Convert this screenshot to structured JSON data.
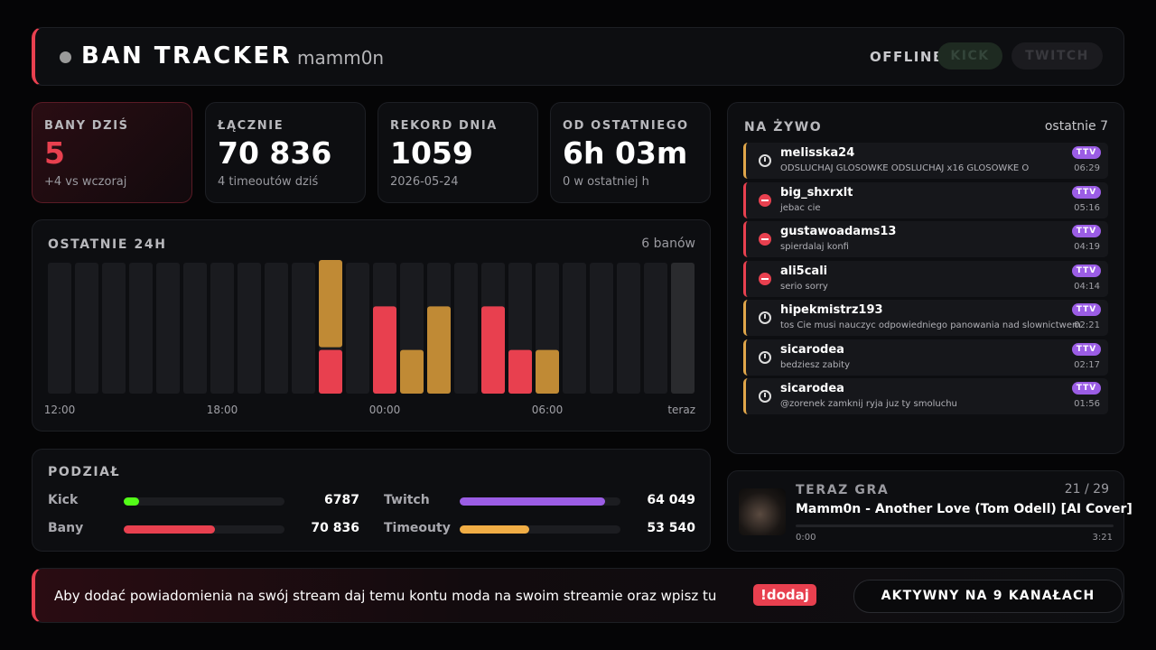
{
  "header": {
    "title": "BAN TRACKER",
    "channel": "mamm0n",
    "status": "OFFLINE",
    "platforms": [
      "KICK",
      "TWITCH"
    ]
  },
  "stats": [
    {
      "label": "BANY DZIŚ",
      "value": "5",
      "sub": "+4 vs wczoraj"
    },
    {
      "label": "ŁĄCZNIE",
      "value": "70 836",
      "sub": "4 timeoutów dziś"
    },
    {
      "label": "REKORD DNIA",
      "value": "1059",
      "sub": "2026-05-24"
    },
    {
      "label": "OD OSTATNIEGO",
      "value": "6h 03m",
      "sub": "0 w ostatniej h"
    }
  ],
  "history": {
    "type": "bar",
    "title": "OSTATNIE 24H",
    "summary": "6 banów",
    "stacked": true,
    "categories": [
      "12:00",
      null,
      null,
      null,
      null,
      null,
      "18:00",
      null,
      null,
      null,
      null,
      null,
      "00:00",
      null,
      null,
      null,
      null,
      null,
      "06:00",
      null,
      null,
      null,
      null,
      "teraz"
    ],
    "series": [
      {
        "color": "#e8404f",
        "values": [
          0,
          0,
          0,
          0,
          0,
          0,
          0,
          0,
          0,
          0,
          1,
          0,
          2,
          0,
          0,
          0,
          2,
          1,
          0,
          0,
          0,
          0,
          0,
          0
        ]
      },
      {
        "color": "#c08a35",
        "values": [
          0,
          0,
          0,
          0,
          0,
          0,
          0,
          0,
          0,
          0,
          2,
          0,
          0,
          1,
          2,
          0,
          0,
          0,
          1,
          0,
          0,
          0,
          0,
          0
        ]
      }
    ],
    "ylim": [
      0,
      3
    ]
  },
  "breakdown": {
    "title": "PODZIAŁ",
    "groups": [
      [
        {
          "label": "Kick",
          "value": 6787,
          "value_label": "6787",
          "color": "#53fc18"
        },
        {
          "label": "Twitch",
          "value": 64049,
          "value_label": "64 049",
          "color": "#9b5de5"
        }
      ],
      [
        {
          "label": "Bany",
          "value": 70836,
          "value_label": "70 836",
          "color": "#e8404f"
        },
        {
          "label": "Timeouty",
          "value": 53540,
          "value_label": "53 540",
          "color": "#f0ad45"
        }
      ]
    ]
  },
  "live": {
    "title": "NA ŻYWO",
    "scope": "ostatnie 7",
    "items": [
      {
        "ban": false,
        "user": "melisska24",
        "message": "ODSLUCHAJ GLOSOWKE ODSLUCHAJ x16 GLOSOWKE O",
        "badge": "TTV",
        "time": "06:29"
      },
      {
        "ban": true,
        "user": "big_shxrxlt",
        "message": "jebac cie",
        "badge": "TTV",
        "time": "05:16"
      },
      {
        "ban": true,
        "user": "gustawoadams13",
        "message": "spierdalaj konfi",
        "badge": "TTV",
        "time": "04:19"
      },
      {
        "ban": true,
        "user": "ali5cali",
        "message": "serio sorry",
        "badge": "TTV",
        "time": "04:14"
      },
      {
        "ban": false,
        "user": "hipekmistrz193",
        "message": "tos Cie musi nauczyc odpowiedniego panowania nad slownictwem",
        "badge": "TTV",
        "time": "02:21"
      },
      {
        "ban": false,
        "user": "sicarodea",
        "message": "bedziesz zabity",
        "badge": "TTV",
        "time": "02:17"
      },
      {
        "ban": false,
        "user": "sicarodea",
        "message": "@zorenek zamknij ryja juz ty smoluchu",
        "badge": "TTV",
        "time": "01:56"
      }
    ]
  },
  "player": {
    "title": "TERAZ GRA",
    "position": "21 / 29",
    "track": "Mamm0n - Another Love (Tom Odell) [AI Cover]",
    "elapsed": "0:00",
    "duration": "3:21"
  },
  "footer": {
    "text": "Aby dodać powiadomienia na swój stream daj temu kontu moda na swoim streamie oraz wpisz tu",
    "command": "!dodaj",
    "active": "AKTYWNY NA 9 KANAŁACH"
  }
}
